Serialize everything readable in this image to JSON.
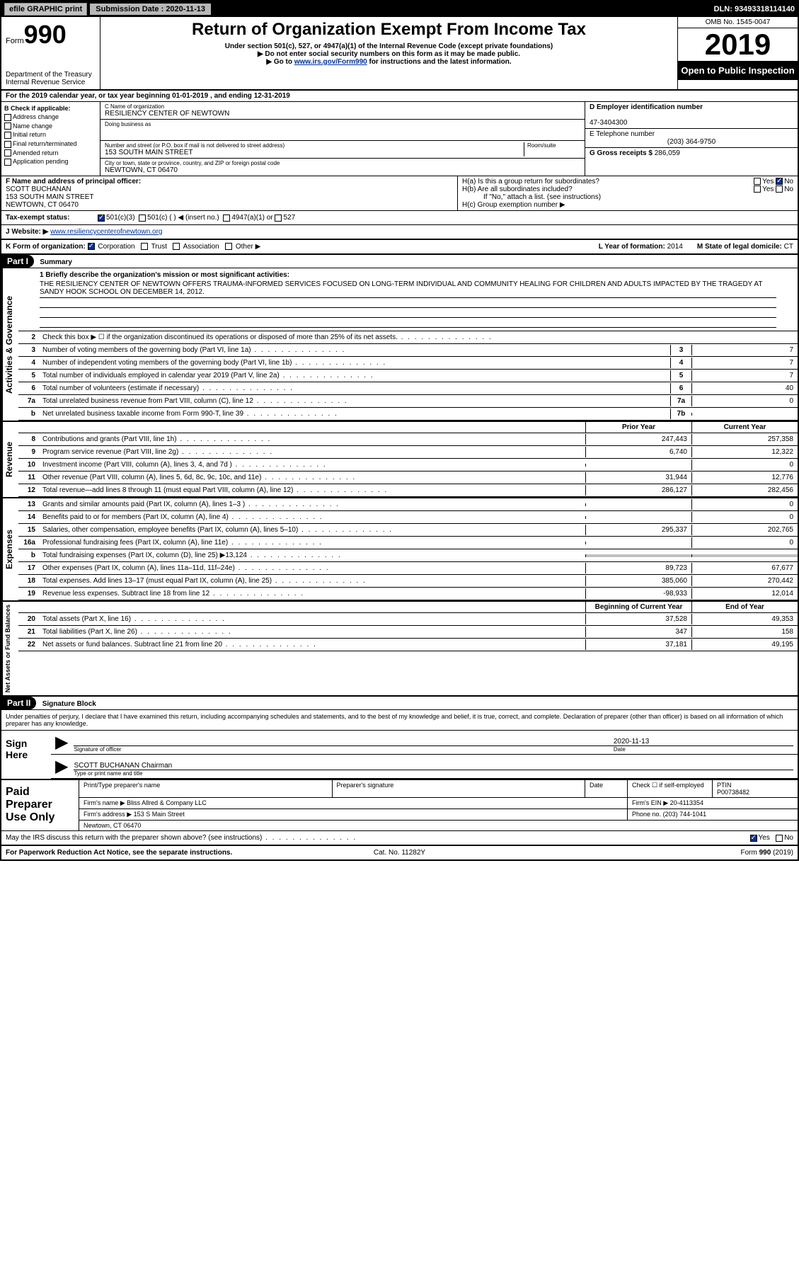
{
  "topbar": {
    "efile": "efile GRAPHIC print",
    "submission_label": "Submission Date : 2020-11-13",
    "dln": "DLN: 93493318114140"
  },
  "header": {
    "form_prefix": "Form",
    "form_number": "990",
    "dept": "Department of the Treasury\nInternal Revenue Service",
    "title": "Return of Organization Exempt From Income Tax",
    "subtitle1": "Under section 501(c), 527, or 4947(a)(1) of the Internal Revenue Code (except private foundations)",
    "subtitle2": "▶ Do not enter social security numbers on this form as it may be made public.",
    "subtitle3a": "▶ Go to ",
    "subtitle3_link": "www.irs.gov/Form990",
    "subtitle3b": " for instructions and the latest information.",
    "omb": "OMB No. 1545-0047",
    "year": "2019",
    "inspect": "Open to Public Inspection"
  },
  "line_a": "For the 2019 calendar year, or tax year beginning 01-01-2019    , and ending 12-31-2019",
  "box_b": {
    "label": "B Check if applicable:",
    "opts": [
      "Address change",
      "Name change",
      "Initial return",
      "Final return/terminated",
      "Amended return",
      "Application pending"
    ]
  },
  "box_c": {
    "name_label": "C Name of organization",
    "name": "RESILIENCY CENTER OF NEWTOWN",
    "dba_label": "Doing business as",
    "addr_label": "Number and street (or P.O. box if mail is not delivered to street address)",
    "room_label": "Room/suite",
    "addr": "153 SOUTH MAIN STREET",
    "city_label": "City or town, state or province, country, and ZIP or foreign postal code",
    "city": "NEWTOWN, CT  06470"
  },
  "box_d": {
    "label": "D Employer identification number",
    "value": "47-3404300"
  },
  "box_e": {
    "label": "E Telephone number",
    "value": "(203) 364-9750"
  },
  "box_g": {
    "label": "G Gross receipts $",
    "value": "286,059"
  },
  "box_f": {
    "label": "F  Name and address of principal officer:",
    "name": "SCOTT BUCHANAN",
    "addr1": "153 SOUTH MAIN STREET",
    "addr2": "NEWTOWN, CT  06470"
  },
  "box_h": {
    "ha": "H(a)  Is this a group return for subordinates?",
    "hb": "H(b)  Are all subordinates included?",
    "hb_note": "If \"No,\" attach a list. (see instructions)",
    "hc": "H(c)  Group exemption number ▶"
  },
  "tax_status": {
    "label": "Tax-exempt status:",
    "opt1": "501(c)(3)",
    "opt2": "501(c) (   ) ◀ (insert no.)",
    "opt3": "4947(a)(1) or",
    "opt4": "527"
  },
  "box_j": {
    "label": "J  Website: ▶ ",
    "value": "www.resiliencycenterofnewtown.org"
  },
  "box_k": {
    "label": "K Form of organization:",
    "opts": [
      "Corporation",
      "Trust",
      "Association",
      "Other ▶"
    ],
    "l_label": "L Year of formation:",
    "l_val": "2014",
    "m_label": "M State of legal domicile:",
    "m_val": "CT"
  },
  "part1": {
    "title": "Summary"
  },
  "mission": {
    "label": "1  Briefly describe the organization's mission or most significant activities:",
    "text": "THE RESILIENCY CENTER OF NEWTOWN OFFERS TRAUMA-INFORMED SERVICES FOCUSED ON LONG-TERM INDIVIDUAL AND COMMUNITY HEALING FOR CHILDREN AND ADULTS IMPACTED BY THE TRAGEDY AT SANDY HOOK SCHOOL ON DECEMBER 14, 2012."
  },
  "gov_lines": [
    {
      "n": "2",
      "d": "Check this box ▶ ☐  if the organization discontinued its operations or disposed of more than 25% of its net assets.",
      "box": "",
      "v": ""
    },
    {
      "n": "3",
      "d": "Number of voting members of the governing body (Part VI, line 1a)",
      "box": "3",
      "v": "7"
    },
    {
      "n": "4",
      "d": "Number of independent voting members of the governing body (Part VI, line 1b)",
      "box": "4",
      "v": "7"
    },
    {
      "n": "5",
      "d": "Total number of individuals employed in calendar year 2019 (Part V, line 2a)",
      "box": "5",
      "v": "7"
    },
    {
      "n": "6",
      "d": "Total number of volunteers (estimate if necessary)",
      "box": "6",
      "v": "40"
    },
    {
      "n": "7a",
      "d": "Total unrelated business revenue from Part VIII, column (C), line 12",
      "box": "7a",
      "v": "0"
    },
    {
      "n": "b",
      "d": "Net unrelated business taxable income from Form 990-T, line 39",
      "box": "7b",
      "v": ""
    }
  ],
  "col_headers": {
    "prior": "Prior Year",
    "current": "Current Year"
  },
  "rev_lines": [
    {
      "n": "8",
      "d": "Contributions and grants (Part VIII, line 1h)",
      "p": "247,443",
      "c": "257,358"
    },
    {
      "n": "9",
      "d": "Program service revenue (Part VIII, line 2g)",
      "p": "6,740",
      "c": "12,322"
    },
    {
      "n": "10",
      "d": "Investment income (Part VIII, column (A), lines 3, 4, and 7d )",
      "p": "",
      "c": "0"
    },
    {
      "n": "11",
      "d": "Other revenue (Part VIII, column (A), lines 5, 6d, 8c, 9c, 10c, and 11e)",
      "p": "31,944",
      "c": "12,776"
    },
    {
      "n": "12",
      "d": "Total revenue—add lines 8 through 11 (must equal Part VIII, column (A), line 12)",
      "p": "286,127",
      "c": "282,456"
    }
  ],
  "exp_lines": [
    {
      "n": "13",
      "d": "Grants and similar amounts paid (Part IX, column (A), lines 1–3 )",
      "p": "",
      "c": "0"
    },
    {
      "n": "14",
      "d": "Benefits paid to or for members (Part IX, column (A), line 4)",
      "p": "",
      "c": "0"
    },
    {
      "n": "15",
      "d": "Salaries, other compensation, employee benefits (Part IX, column (A), lines 5–10)",
      "p": "295,337",
      "c": "202,765"
    },
    {
      "n": "16a",
      "d": "Professional fundraising fees (Part IX, column (A), line 11e)",
      "p": "",
      "c": "0"
    },
    {
      "n": "b",
      "d": "Total fundraising expenses (Part IX, column (D), line 25) ▶13,124",
      "p": "shade",
      "c": "shade"
    },
    {
      "n": "17",
      "d": "Other expenses (Part IX, column (A), lines 11a–11d, 11f–24e)",
      "p": "89,723",
      "c": "67,677"
    },
    {
      "n": "18",
      "d": "Total expenses. Add lines 13–17 (must equal Part IX, column (A), line 25)",
      "p": "385,060",
      "c": "270,442"
    },
    {
      "n": "19",
      "d": "Revenue less expenses. Subtract line 18 from line 12",
      "p": "-98,933",
      "c": "12,014"
    }
  ],
  "net_headers": {
    "begin": "Beginning of Current Year",
    "end": "End of Year"
  },
  "net_lines": [
    {
      "n": "20",
      "d": "Total assets (Part X, line 16)",
      "p": "37,528",
      "c": "49,353"
    },
    {
      "n": "21",
      "d": "Total liabilities (Part X, line 26)",
      "p": "347",
      "c": "158"
    },
    {
      "n": "22",
      "d": "Net assets or fund balances. Subtract line 21 from line 20",
      "p": "37,181",
      "c": "49,195"
    }
  ],
  "part2": {
    "title": "Signature Block"
  },
  "sig": {
    "perjury": "Under penalties of perjury, I declare that I have examined this return, including accompanying schedules and statements, and to the best of my knowledge and belief, it is true, correct, and complete. Declaration of preparer (other than officer) is based on all information of which preparer has any knowledge.",
    "sign_here": "Sign Here",
    "officer_label": "Signature of officer",
    "date_label": "Date",
    "date_val": "2020-11-13",
    "name": "SCOTT BUCHANAN Chairman",
    "name_label": "Type or print name and title"
  },
  "prep": {
    "title": "Paid Preparer Use Only",
    "pname_label": "Print/Type preparer's name",
    "psig_label": "Preparer's signature",
    "pdate_label": "Date",
    "pcheck_label": "Check ☐ if self-employed",
    "ptin_label": "PTIN",
    "ptin": "P00738482",
    "firm_label": "Firm's name   ▶",
    "firm": "Bliss Allred & Company LLC",
    "ein_label": "Firm's EIN ▶",
    "ein": "20-4113354",
    "addr_label": "Firm's address ▶",
    "addr": "153 S Main Street",
    "addr2": "Newtown, CT  06470",
    "phone_label": "Phone no.",
    "phone": "(203) 744-1041"
  },
  "discuss": "May the IRS discuss this return with the preparer shown above? (see instructions)",
  "footer": {
    "left": "For Paperwork Reduction Act Notice, see the separate instructions.",
    "mid": "Cat. No. 11282Y",
    "right": "Form 990 (2019)"
  },
  "sides": {
    "gov": "Activities & Governance",
    "rev": "Revenue",
    "exp": "Expenses",
    "net": "Net Assets or Fund Balances"
  }
}
